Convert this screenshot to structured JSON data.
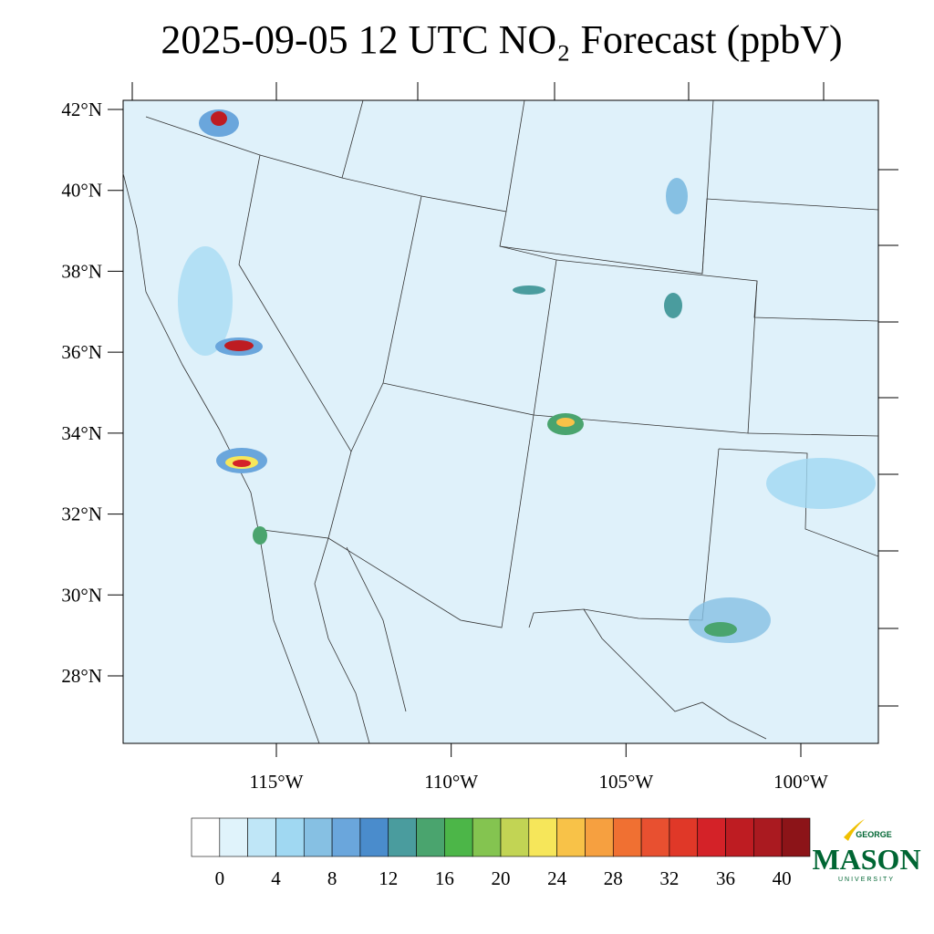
{
  "title": "2025-09-05 12 UTC NO₂ Forecast (ppbV)",
  "map": {
    "lat_ticks": [
      {
        "value": 42,
        "label": "42°N"
      },
      {
        "value": 40,
        "label": "40°N"
      },
      {
        "value": 38,
        "label": "38°N"
      },
      {
        "value": 36,
        "label": "36°N"
      },
      {
        "value": 34,
        "label": "34°N"
      },
      {
        "value": 32,
        "label": "32°N"
      },
      {
        "value": 30,
        "label": "30°N"
      },
      {
        "value": 28,
        "label": "28°N"
      }
    ],
    "lon_ticks": [
      {
        "value": 115,
        "label": "115°W"
      },
      {
        "value": 110,
        "label": "110°W"
      },
      {
        "value": 105,
        "label": "105°W"
      },
      {
        "value": 100,
        "label": "100°W"
      }
    ]
  },
  "colorbar": {
    "colors": [
      "#ffffff",
      "#e0f3fb",
      "#bfe6f7",
      "#a0d8f2",
      "#86c0e3",
      "#6aa6dc",
      "#4a8ccc",
      "#4a9c9e",
      "#4aa46e",
      "#4cb648",
      "#84c450",
      "#c2d454",
      "#f6e65a",
      "#f8c248",
      "#f6a040",
      "#f07032",
      "#e85030",
      "#e03828",
      "#d42228",
      "#be1c22",
      "#aa1a20",
      "#8c1418"
    ],
    "ticks": [
      0,
      4,
      8,
      12,
      16,
      20,
      24,
      28,
      32,
      36,
      40
    ]
  },
  "logo": {
    "top": "GEORGE",
    "name": "MASON",
    "bottom": "UNIVERSITY"
  }
}
